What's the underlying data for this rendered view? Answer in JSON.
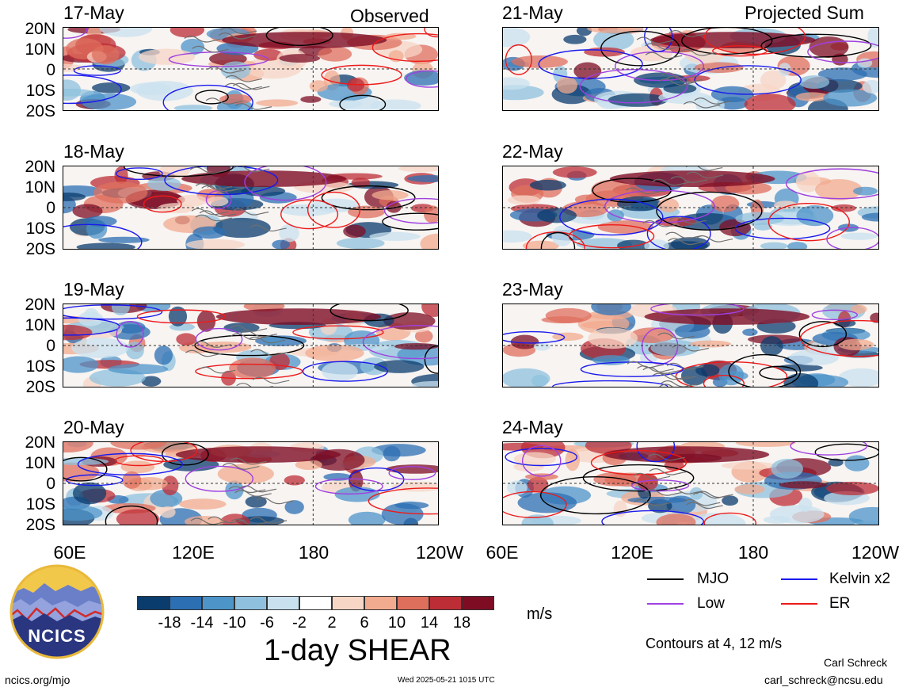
{
  "header": {
    "left_label": "Observed",
    "right_label": "Projected Sum"
  },
  "panels": [
    {
      "date": "17-May",
      "col": "observed"
    },
    {
      "date": "18-May",
      "col": "observed"
    },
    {
      "date": "19-May",
      "col": "observed"
    },
    {
      "date": "20-May",
      "col": "observed"
    },
    {
      "date": "21-May",
      "col": "projected"
    },
    {
      "date": "22-May",
      "col": "projected"
    },
    {
      "date": "23-May",
      "col": "projected"
    },
    {
      "date": "24-May",
      "col": "projected"
    }
  ],
  "lat_labels": [
    "20N",
    "10N",
    "0",
    "10S",
    "20S"
  ],
  "lon_labels": [
    "60E",
    "120E",
    "180",
    "120W"
  ],
  "colorbar": {
    "title": "1-day SHEAR",
    "units": "m/s",
    "tick_labels": [
      "-18",
      "-14",
      "-10",
      "-6",
      "-2",
      "2",
      "6",
      "10",
      "14",
      "18"
    ],
    "colors": [
      "#0b3c6e",
      "#2c6fb3",
      "#4d94c9",
      "#8fc1de",
      "#c9e1ef",
      "#ffffff",
      "#f7d6c6",
      "#f2ab8f",
      "#df6f5d",
      "#bd2d35",
      "#7e0d24"
    ]
  },
  "legend": {
    "items": [
      {
        "label": "MJO",
        "color": "#000000"
      },
      {
        "label": "Kelvin x2",
        "color": "#1a1aee"
      },
      {
        "label": "Low",
        "color": "#a040e0"
      },
      {
        "label": "ER",
        "color": "#ee1a1a"
      }
    ],
    "contours_note": "Contours at 4, 12 m/s"
  },
  "footer": {
    "site": "ncics.org/mjo",
    "timestamp": "Wed 2025-05-21 1015 UTC",
    "author": "Carl Schreck",
    "email": "carl_schreck@ncsu.edu",
    "logo_text": "NCICS"
  }
}
